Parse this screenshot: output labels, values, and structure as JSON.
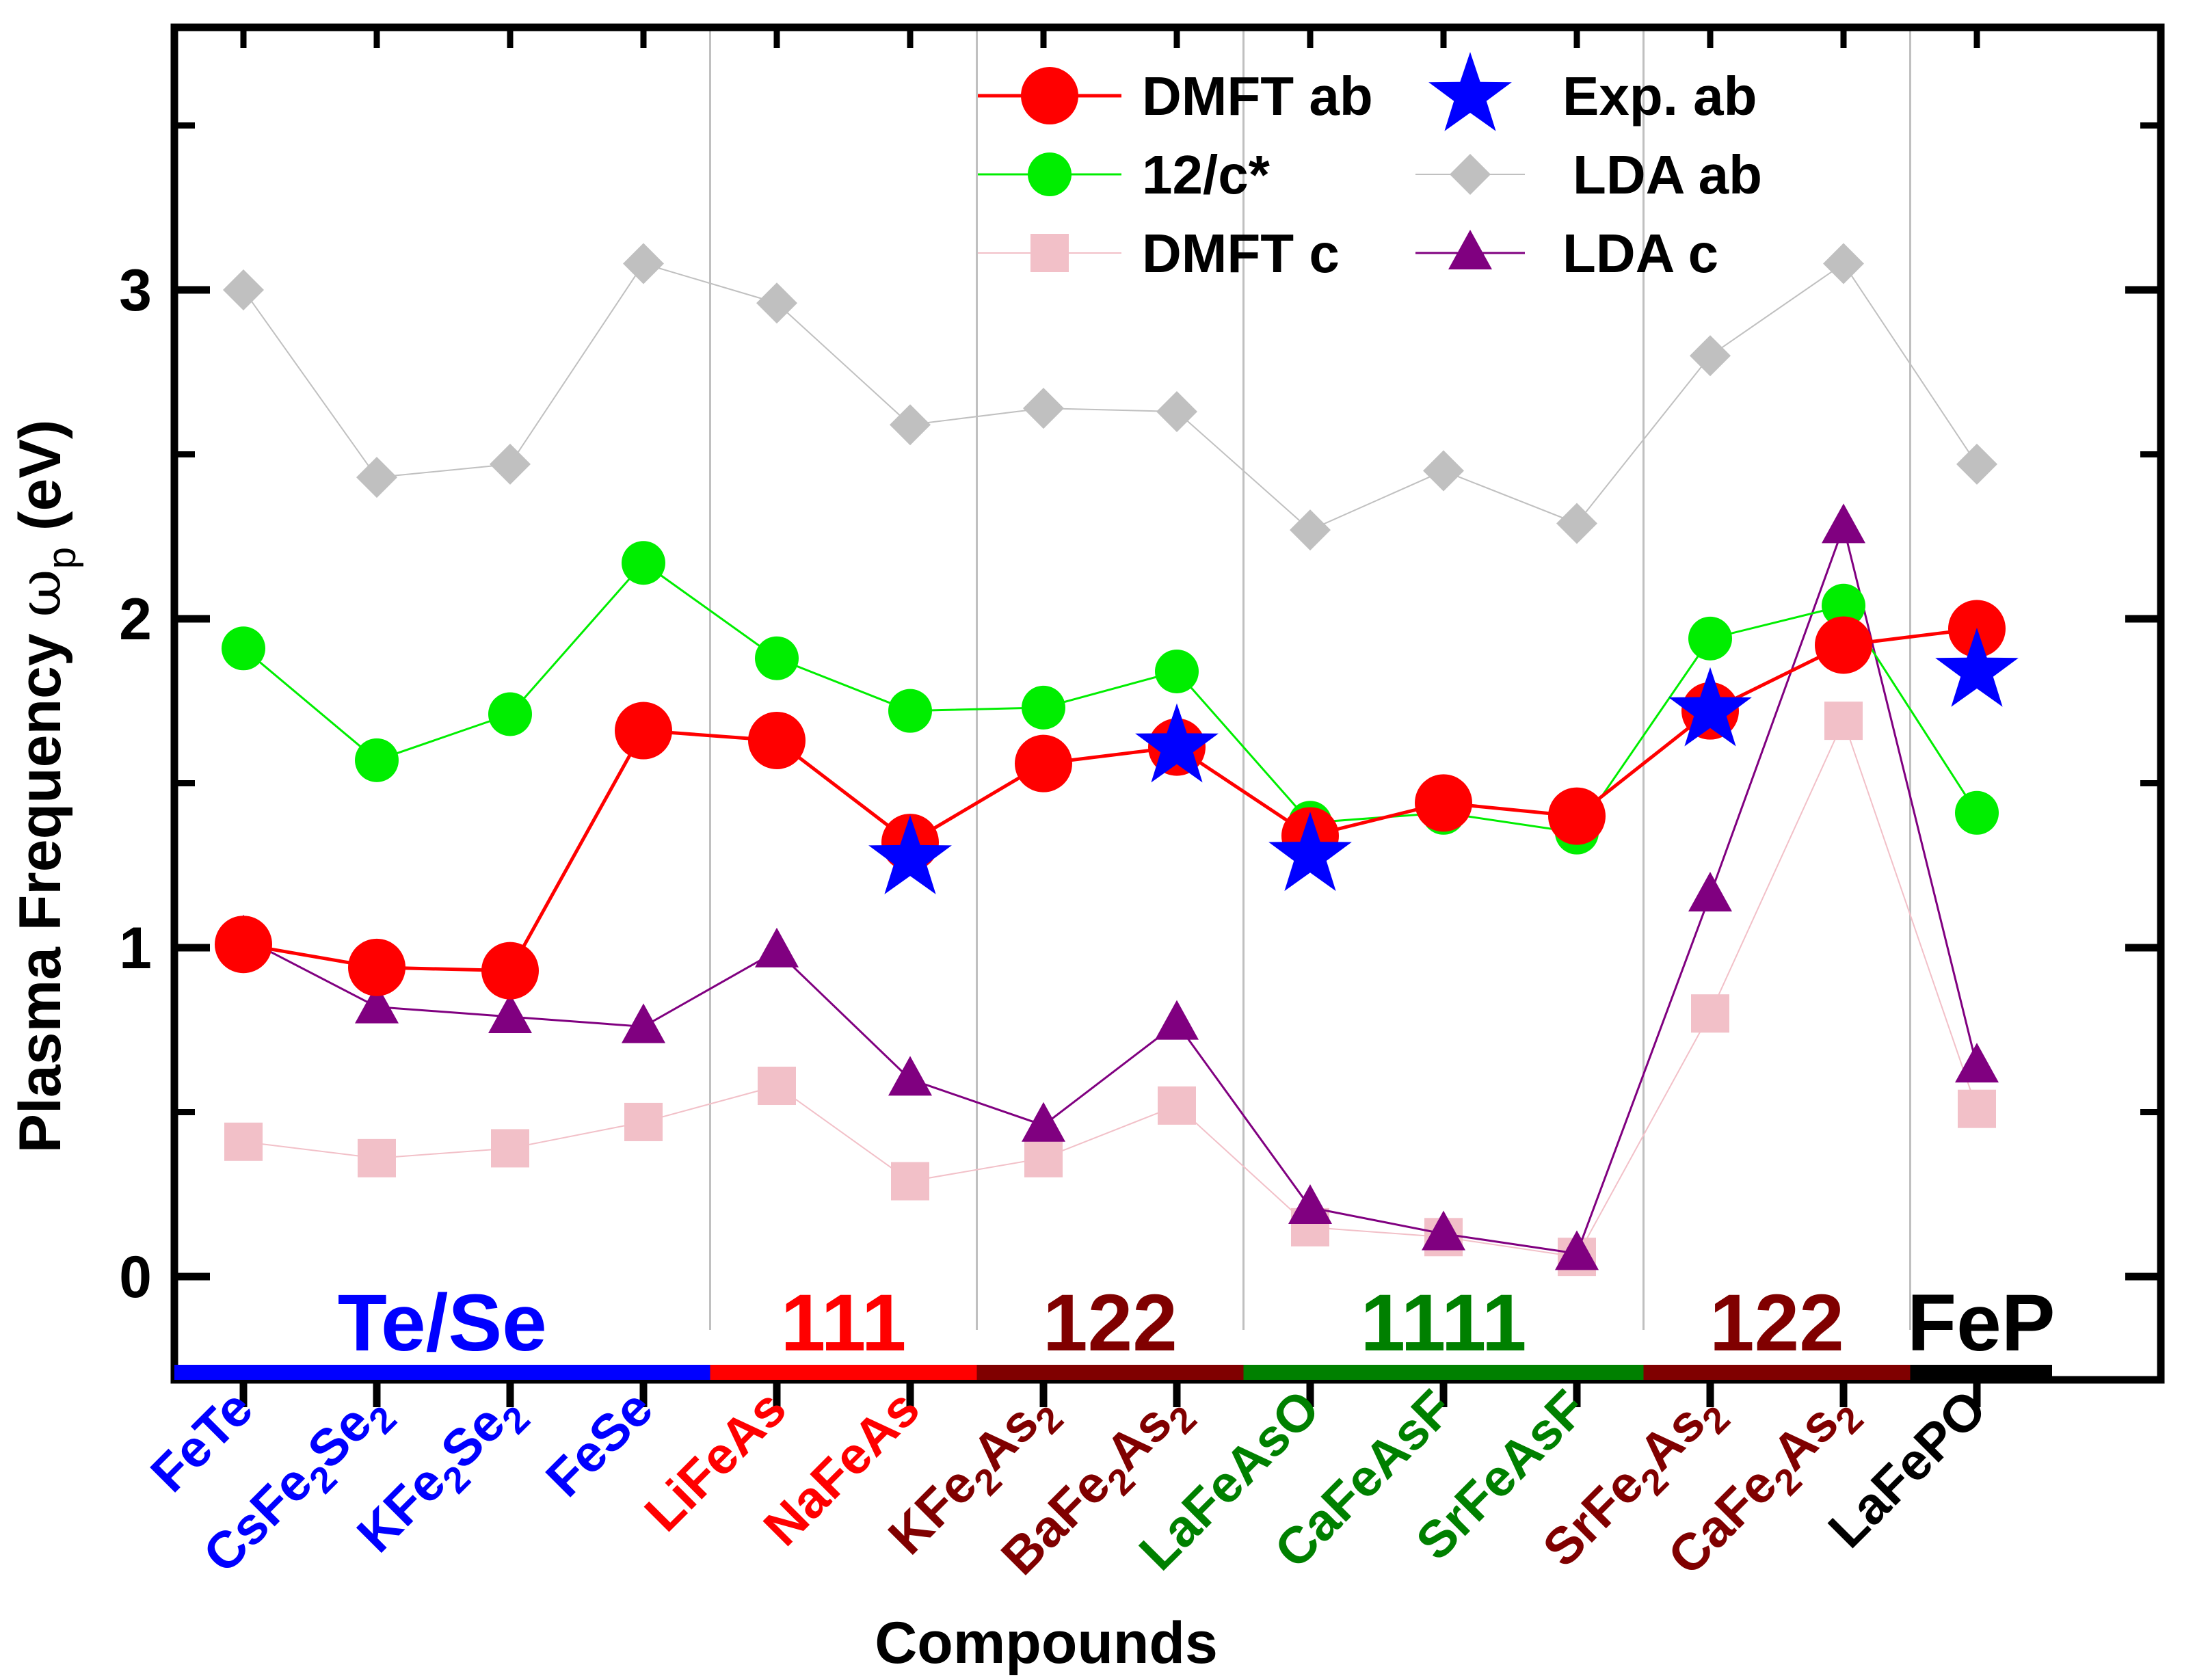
{
  "chart_data": {
    "type": "line",
    "xlabel": "Compounds",
    "ylabel_main": "Plasma Frequency ",
    "ylabel_symbol": "ω",
    "ylabel_subscript": "p",
    "ylabel_unit": " (eV)",
    "ylim": [
      -0.33,
      3.8
    ],
    "yticks": [
      0,
      1,
      2,
      3
    ],
    "ytick_labels": [
      "0",
      "1",
      "2",
      "3"
    ],
    "categories": [
      {
        "parts": [
          [
            "FeTe",
            ""
          ]
        ],
        "color": "#0000ff"
      },
      {
        "parts": [
          [
            "CsFe",
            ""
          ],
          [
            "2",
            "sub"
          ],
          [
            "Se",
            ""
          ],
          [
            "2",
            "sub"
          ]
        ],
        "color": "#0000ff"
      },
      {
        "parts": [
          [
            "KFe",
            ""
          ],
          [
            "2",
            "sub"
          ],
          [
            "Se",
            ""
          ],
          [
            "2",
            "sub"
          ]
        ],
        "color": "#0000ff"
      },
      {
        "parts": [
          [
            "FeSe",
            ""
          ]
        ],
        "color": "#0000ff"
      },
      {
        "parts": [
          [
            "LiFeAs",
            ""
          ]
        ],
        "color": "#ff0000"
      },
      {
        "parts": [
          [
            "NaFeAs",
            ""
          ]
        ],
        "color": "#ff0000"
      },
      {
        "parts": [
          [
            "KFe",
            ""
          ],
          [
            "2",
            "sub"
          ],
          [
            "As",
            ""
          ],
          [
            "2",
            "sub"
          ]
        ],
        "color": "#800000"
      },
      {
        "parts": [
          [
            "BaFe",
            ""
          ],
          [
            "2",
            "sub"
          ],
          [
            "As",
            ""
          ],
          [
            "2",
            "sub"
          ]
        ],
        "color": "#800000"
      },
      {
        "parts": [
          [
            "LaFeAsO",
            ""
          ]
        ],
        "color": "#008000"
      },
      {
        "parts": [
          [
            "CaFeAsF",
            ""
          ]
        ],
        "color": "#008000"
      },
      {
        "parts": [
          [
            "SrFeAsF",
            ""
          ]
        ],
        "color": "#008000"
      },
      {
        "parts": [
          [
            "SrFe",
            ""
          ],
          [
            "2",
            "sub"
          ],
          [
            "As",
            ""
          ],
          [
            "2",
            "sub"
          ]
        ],
        "color": "#800000"
      },
      {
        "parts": [
          [
            "CaFe",
            ""
          ],
          [
            "2",
            "sub"
          ],
          [
            "As",
            ""
          ],
          [
            "2",
            "sub"
          ]
        ],
        "color": "#800000"
      },
      {
        "parts": [
          [
            "LaFePO",
            ""
          ]
        ],
        "color": "#000000"
      }
    ],
    "groups": [
      {
        "label": "Te/Se",
        "color": "#0000ff",
        "start": 0,
        "end": 3
      },
      {
        "label": "111",
        "color": "#ff0000",
        "start": 4,
        "end": 5
      },
      {
        "label": "122",
        "color": "#800000",
        "start": 6,
        "end": 7
      },
      {
        "label": "1111",
        "color": "#008000",
        "start": 8,
        "end": 10
      },
      {
        "label": "122",
        "color": "#800000",
        "start": 11,
        "end": 12
      },
      {
        "label": "FeP",
        "color": "#000000",
        "start": 13,
        "end": 13
      }
    ],
    "series": [
      {
        "name": "LDA ab",
        "color": "#c0c0c0",
        "marker": "diamond",
        "line": true,
        "values": [
          3.0,
          2.43,
          2.47,
          3.08,
          2.96,
          2.59,
          2.64,
          2.63,
          2.27,
          2.45,
          2.29,
          2.8,
          3.08,
          2.47
        ]
      },
      {
        "name": "DMFT c",
        "color": "#f2c0c8",
        "marker": "square",
        "line": true,
        "values": [
          0.41,
          0.36,
          0.39,
          0.47,
          0.58,
          0.29,
          0.36,
          0.52,
          0.15,
          0.12,
          0.06,
          0.8,
          1.69,
          0.51
        ]
      },
      {
        "name": "LDA c",
        "color": "#800080",
        "marker": "triangle",
        "line": true,
        "values": [
          1.03,
          0.82,
          0.79,
          0.76,
          0.99,
          0.6,
          0.46,
          0.77,
          0.21,
          0.13,
          0.07,
          1.16,
          2.28,
          0.64
        ]
      },
      {
        "name": "12/c*",
        "color": "#00ee00",
        "marker": "circle-small",
        "line": true,
        "values": [
          1.91,
          1.57,
          1.71,
          2.17,
          1.88,
          1.72,
          1.73,
          1.84,
          1.38,
          1.41,
          1.35,
          1.94,
          2.04,
          1.41
        ]
      },
      {
        "name": "DMFT ab",
        "color": "#ff0000",
        "marker": "circle-large",
        "line": true,
        "values": [
          1.01,
          0.94,
          0.93,
          1.66,
          1.63,
          1.32,
          1.56,
          1.61,
          1.34,
          1.44,
          1.4,
          1.72,
          1.92,
          1.97
        ]
      },
      {
        "name": "Exp. ab",
        "color": "#0000ff",
        "marker": "star",
        "line": false,
        "values": [
          null,
          null,
          null,
          null,
          null,
          1.27,
          null,
          1.61,
          1.28,
          null,
          null,
          1.72,
          null,
          1.84
        ]
      }
    ],
    "legend_position": "top-right"
  }
}
